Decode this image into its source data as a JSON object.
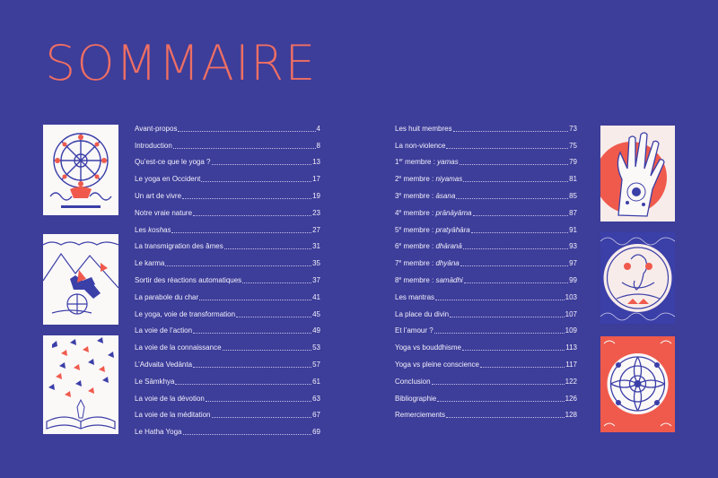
{
  "title": "SOMMAIRE",
  "toc_left": [
    {
      "label": "Avant-propos",
      "page": "4"
    },
    {
      "label": "Introduction",
      "page": "8"
    },
    {
      "label": "Qu’est-ce que le yoga ?",
      "page": "13"
    },
    {
      "label": "Le yoga en Occident",
      "page": "17"
    },
    {
      "label": "Un art de vivre",
      "page": "19"
    },
    {
      "label": "Notre vraie nature",
      "page": "23"
    },
    {
      "label": "Les koshas",
      "page": "27"
    },
    {
      "label": "La transmigration des âmes",
      "page": "31"
    },
    {
      "label": "Le karma",
      "page": "35"
    },
    {
      "label": "Sortir des réactions automatiques",
      "page": "37"
    },
    {
      "label": "La parabole du char",
      "page": "41"
    },
    {
      "label": "Le yoga, voie de transformation",
      "page": "45"
    },
    {
      "label": "La voie de l’action",
      "page": "49"
    },
    {
      "label": "La voie de la connaissance",
      "page": "53"
    },
    {
      "label": "L’Advaita Vedānta",
      "page": "57"
    },
    {
      "label": "Le Sāmkhya",
      "page": "61"
    },
    {
      "label": "La voie de la dévotion",
      "page": "63"
    },
    {
      "label": "La voie de la méditation",
      "page": "67"
    },
    {
      "label": "Le Hatha Yoga",
      "page": "69"
    }
  ],
  "toc_right": [
    {
      "label": "Les huit membres",
      "page": "73"
    },
    {
      "label": "La non-violence",
      "page": "75"
    },
    {
      "num": "1",
      "sup": "er",
      "label": " membre : ",
      "term": "yamas",
      "page": "79"
    },
    {
      "num": "2",
      "sup": "e",
      "label": " membre : ",
      "term": "niyamas",
      "page": "81"
    },
    {
      "num": "3",
      "sup": "e",
      "label": " membre : ",
      "term": "āsana",
      "page": "85"
    },
    {
      "num": "4",
      "sup": "e",
      "label": " membre : ",
      "term": "prānāyāma",
      "page": "87"
    },
    {
      "num": "5",
      "sup": "e",
      "label": " membre : ",
      "term": "pratyāhāra",
      "page": "91"
    },
    {
      "num": "6",
      "sup": "e",
      "label": " membre : ",
      "term": "dhāranā",
      "page": "93"
    },
    {
      "num": "7",
      "sup": "e",
      "label": " membre : ",
      "term": "dhyāna",
      "page": "97"
    },
    {
      "num": "8",
      "sup": "e",
      "label": " membre : ",
      "term": "samādhi",
      "page": "99"
    },
    {
      "label": "Les mantras",
      "page": "103"
    },
    {
      "label": "La place du divin",
      "page": "107"
    },
    {
      "label": "Et l’amour ?",
      "page": "109"
    },
    {
      "label": "Yoga vs bouddhisme",
      "page": "113"
    },
    {
      "label": "Yoga vs pleine conscience",
      "page": "117"
    },
    {
      "label": "Conclusion",
      "page": "122"
    },
    {
      "label": "Bibliographie",
      "page": "126"
    },
    {
      "label": "Remerciements",
      "page": "128"
    }
  ],
  "colors": {
    "background": "#3d3d9a",
    "title": "#ee6f63",
    "text": "#f2f0fb",
    "ink_blue": "#3b3fa8",
    "coral": "#ef5a4c"
  },
  "illustrations": [
    "dharma-wheel-illustration",
    "chariot-illustration",
    "butterflies-book-illustration",
    "hand-mudra-illustration",
    "ganesha-illustration",
    "mandala-illustration"
  ]
}
